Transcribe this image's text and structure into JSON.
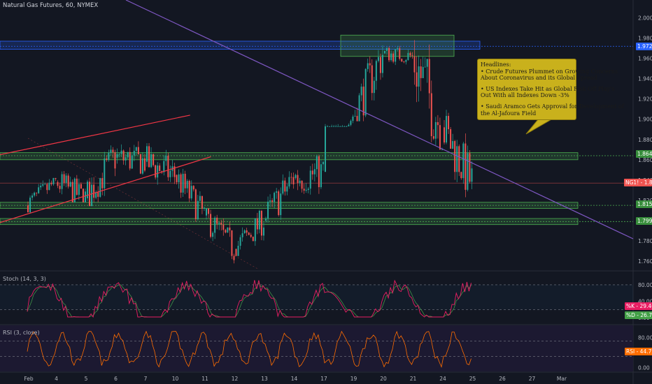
{
  "header": {
    "title": "Natural Gas Futures, 60, NYMEX"
  },
  "stoch": {
    "title": "Stoch (14, 3, 3)",
    "k_label": "%K",
    "k_value": "29.46",
    "d_label": "%D",
    "d_value": "26.79",
    "k_color": "#e91e63",
    "d_color": "#4caf50"
  },
  "rsi": {
    "title": "RSI (3, close)",
    "label": "RSI",
    "value": "44.79",
    "color": "#ff6d00"
  },
  "annotation": {
    "lines": [
      "Headlines:",
      "• Crude Futures Plummet on Growing Concerns",
      "About Coronavirus and its Global Spread",
      "",
      "• US Indexes Take Hit as Global Risk-Off Play's",
      "Out With all Indexes Down -3%",
      "",
      "• Saudi Aramco Gets Approval for Development of",
      "the Al-Jafoura Field"
    ]
  },
  "price_tags": {
    "resistance_top": "1.972",
    "level_1": "1.864",
    "symbol": "NG1!",
    "last": "1.837",
    "level_2": "1.815",
    "level_3": "1.799"
  },
  "chart_data": [
    {
      "type": "candlestick",
      "title": "Natural Gas Futures, 60, NYMEX",
      "y_ticks": [
        "2.000",
        "1.980",
        "1.960",
        "1.940",
        "1.920",
        "1.900",
        "1.880",
        "1.860",
        "1.840",
        "1.820",
        "1.800",
        "1.780",
        "1.760"
      ],
      "ylim": [
        1.751,
        2.008
      ],
      "x_ticks": [
        "Feb",
        "4",
        "5",
        "6",
        "7",
        "10",
        "11",
        "12",
        "13",
        "14",
        "17",
        "19",
        "20",
        "21",
        "24",
        "25",
        "26",
        "27",
        "Mar"
      ],
      "session_index_of_tick": [
        0,
        1,
        2,
        3,
        4,
        5,
        6,
        7,
        8,
        9,
        10,
        11,
        12,
        13,
        14,
        15,
        16,
        17,
        18
      ],
      "sessions_with_data": 15,
      "sessions_ohlc_anchor": [
        [
          1.815,
          1.842,
          1.808,
          1.838
        ],
        [
          1.838,
          1.868,
          1.818,
          1.822
        ],
        [
          1.822,
          1.876,
          1.812,
          1.862
        ],
        [
          1.862,
          1.888,
          1.835,
          1.858
        ],
        [
          1.858,
          1.892,
          1.832,
          1.845
        ],
        [
          1.845,
          1.851,
          1.796,
          1.805
        ],
        [
          1.805,
          1.812,
          1.756,
          1.772
        ],
        [
          1.772,
          1.815,
          1.765,
          1.8
        ],
        [
          1.8,
          1.857,
          1.795,
          1.842
        ],
        [
          1.842,
          1.865,
          1.8,
          1.848
        ],
        [
          1.848,
          1.912,
          1.893,
          1.903
        ],
        [
          1.903,
          1.978,
          1.898,
          1.965
        ],
        [
          1.965,
          1.98,
          1.95,
          1.962
        ],
        [
          1.962,
          2.008,
          1.87,
          1.892
        ],
        [
          1.892,
          1.912,
          1.822,
          1.837
        ]
      ],
      "horizontal_levels": [
        1.972,
        1.864,
        1.815,
        1.799
      ],
      "zones": [
        {
          "name": "resistance-zone",
          "from": 1.969,
          "to": 1.977,
          "color": "#2962ff"
        },
        {
          "name": "consolidation-box",
          "from": 1.962,
          "to": 1.983,
          "color": "#4caf50"
        },
        {
          "name": "support-zone-1",
          "from": 1.86,
          "to": 1.867,
          "color": "#4caf50"
        },
        {
          "name": "support-zone-2",
          "from": 1.812,
          "to": 1.818,
          "color": "#4caf50"
        },
        {
          "name": "support-zone-3",
          "from": 1.796,
          "to": 1.802,
          "color": "#4caf50"
        }
      ],
      "trendlines": [
        {
          "name": "downtrend-line",
          "from": [
            0,
            2.035
          ],
          "to": [
            18,
            1.785
          ],
          "color": "#7e57c2"
        },
        {
          "name": "channel-upper",
          "from": [
            0,
            1.865
          ],
          "to": [
            5.5,
            1.904
          ],
          "color": "#f23645"
        },
        {
          "name": "channel-lower",
          "from": [
            0,
            1.798
          ],
          "to": [
            6.2,
            1.863
          ],
          "color": "#f23645"
        }
      ],
      "colors": {
        "up": "#26a69a",
        "down": "#ef5350",
        "background": "#131722"
      }
    },
    {
      "type": "line",
      "title": "Stoch (14, 3, 3)",
      "y_ticks": [
        "80.00",
        "40.00",
        "0.00"
      ],
      "ylim": [
        -15,
        112
      ],
      "series": [
        {
          "name": "%K",
          "last": 29.46
        },
        {
          "name": "%D",
          "last": 26.79
        }
      ]
    },
    {
      "type": "line",
      "title": "RSI (3, close)",
      "y_ticks": [
        "80.00",
        "40.00",
        "0.00"
      ],
      "ylim": [
        -10,
        112
      ],
      "series": [
        {
          "name": "RSI",
          "last": 44.79
        }
      ]
    }
  ]
}
